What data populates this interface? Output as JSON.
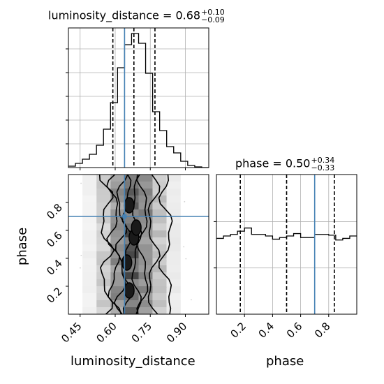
{
  "chart_data": {
    "type": "corner",
    "parameters": [
      "luminosity_distance",
      "phase"
    ],
    "truths": {
      "luminosity_distance": 0.64,
      "phase": 0.7
    },
    "titles": {
      "luminosity_distance": {
        "prefix": "luminosity_distance = ",
        "median": "0.68",
        "plus": "+0.10",
        "minus": "−0.09"
      },
      "phase": {
        "prefix": "phase = ",
        "median": "0.50",
        "plus": "+0.34",
        "minus": "−0.33"
      }
    },
    "labels": {
      "x_distance": "luminosity_distance",
      "x_phase": "phase",
      "y_phase": "phase"
    },
    "tick_labels": {
      "luminosity_distance": [
        "0.45",
        "0.60",
        "0.75",
        "0.90"
      ],
      "phase": [
        "0.2",
        "0.4",
        "0.6",
        "0.8"
      ]
    },
    "tick_values": {
      "luminosity_distance": [
        0.45,
        0.6,
        0.75,
        0.9
      ],
      "phase": [
        0.2,
        0.4,
        0.6,
        0.8
      ]
    },
    "ranges": {
      "luminosity_distance": [
        0.4,
        1.0
      ],
      "phase": [
        0.0,
        1.0
      ]
    },
    "hist_distance": {
      "edges": [
        0.4,
        0.43,
        0.46,
        0.49,
        0.52,
        0.55,
        0.58,
        0.61,
        0.64,
        0.67,
        0.7,
        0.73,
        0.76,
        0.79,
        0.82,
        0.85,
        0.88,
        0.91,
        0.94,
        0.97,
        1.0
      ],
      "counts": [
        2,
        6,
        12,
        19,
        32,
        55,
        93,
        143,
        176,
        192,
        178,
        135,
        80,
        53,
        30,
        21,
        9,
        3,
        1,
        0
      ],
      "quantiles": [
        0.59,
        0.68,
        0.77
      ],
      "ylim": [
        0,
        200
      ]
    },
    "hist_phase": {
      "edges": [
        0.0,
        0.05,
        0.1,
        0.15,
        0.2,
        0.25,
        0.3,
        0.35,
        0.4,
        0.45,
        0.5,
        0.55,
        0.6,
        0.65,
        0.7,
        0.75,
        0.8,
        0.85,
        0.9,
        0.95,
        1.0
      ],
      "counts": [
        95,
        98,
        100,
        104,
        108,
        100,
        100,
        98,
        94,
        96,
        98,
        101,
        96,
        96,
        100,
        100,
        99,
        93,
        95,
        98
      ],
      "quantiles": [
        0.17,
        0.5,
        0.84
      ],
      "ylim": [
        0,
        175
      ]
    },
    "contour_levels": [
      "0.6",
      "0.9",
      "0.98",
      "0.995"
    ]
  }
}
